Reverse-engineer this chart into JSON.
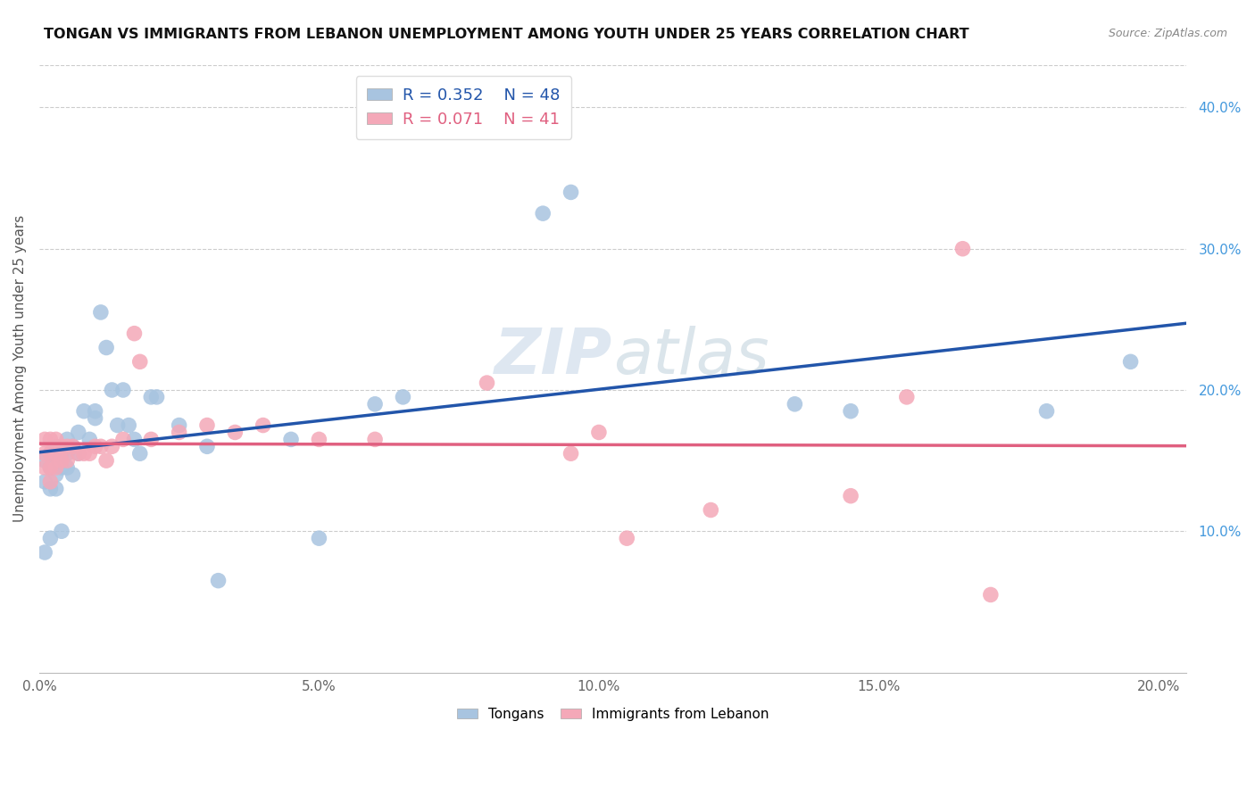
{
  "title": "TONGAN VS IMMIGRANTS FROM LEBANON UNEMPLOYMENT AMONG YOUTH UNDER 25 YEARS CORRELATION CHART",
  "source": "Source: ZipAtlas.com",
  "ylabel": "Unemployment Among Youth under 25 years",
  "xlabel_ticks": [
    "0.0%",
    "5.0%",
    "10.0%",
    "15.0%",
    "20.0%"
  ],
  "xlabel_vals": [
    0.0,
    0.05,
    0.1,
    0.15,
    0.2
  ],
  "ylabel_right_ticks": [
    "10.0%",
    "20.0%",
    "30.0%",
    "40.0%"
  ],
  "ylabel_right_vals": [
    0.1,
    0.2,
    0.3,
    0.4
  ],
  "grid_lines": [
    0.1,
    0.2,
    0.3,
    0.4
  ],
  "xlim": [
    0.0,
    0.205
  ],
  "ylim": [
    0.0,
    0.43
  ],
  "blue_R": "R = 0.352",
  "blue_N": "N = 48",
  "pink_R": "R = 0.071",
  "pink_N": "N = 41",
  "blue_scatter_color": "#a8c4e0",
  "pink_scatter_color": "#f4a8b8",
  "blue_line_color": "#2255aa",
  "pink_line_color": "#e06080",
  "legend_label_blue": "Tongans",
  "legend_label_pink": "Immigrants from Lebanon",
  "watermark_part1": "ZIP",
  "watermark_part2": "atlas",
  "tongan_x": [
    0.001,
    0.001,
    0.001,
    0.002,
    0.002,
    0.002,
    0.002,
    0.003,
    0.003,
    0.003,
    0.003,
    0.004,
    0.004,
    0.004,
    0.005,
    0.005,
    0.005,
    0.006,
    0.006,
    0.007,
    0.007,
    0.008,
    0.009,
    0.01,
    0.01,
    0.011,
    0.012,
    0.013,
    0.014,
    0.015,
    0.016,
    0.017,
    0.018,
    0.02,
    0.021,
    0.025,
    0.03,
    0.032,
    0.045,
    0.05,
    0.06,
    0.065,
    0.09,
    0.095,
    0.135,
    0.145,
    0.18,
    0.195
  ],
  "tongan_y": [
    0.15,
    0.135,
    0.085,
    0.155,
    0.145,
    0.13,
    0.095,
    0.16,
    0.15,
    0.14,
    0.13,
    0.155,
    0.145,
    0.1,
    0.165,
    0.155,
    0.145,
    0.16,
    0.14,
    0.17,
    0.155,
    0.185,
    0.165,
    0.18,
    0.185,
    0.255,
    0.23,
    0.2,
    0.175,
    0.2,
    0.175,
    0.165,
    0.155,
    0.195,
    0.195,
    0.175,
    0.16,
    0.065,
    0.165,
    0.095,
    0.19,
    0.195,
    0.325,
    0.34,
    0.19,
    0.185,
    0.185,
    0.22
  ],
  "lebanon_x": [
    0.001,
    0.001,
    0.001,
    0.002,
    0.002,
    0.002,
    0.002,
    0.003,
    0.003,
    0.003,
    0.004,
    0.004,
    0.005,
    0.005,
    0.006,
    0.007,
    0.008,
    0.009,
    0.01,
    0.011,
    0.012,
    0.013,
    0.015,
    0.017,
    0.018,
    0.02,
    0.025,
    0.03,
    0.035,
    0.04,
    0.05,
    0.06,
    0.08,
    0.095,
    0.1,
    0.105,
    0.12,
    0.145,
    0.155,
    0.165,
    0.17
  ],
  "lebanon_y": [
    0.165,
    0.155,
    0.145,
    0.165,
    0.155,
    0.145,
    0.135,
    0.165,
    0.155,
    0.145,
    0.16,
    0.15,
    0.16,
    0.15,
    0.16,
    0.155,
    0.155,
    0.155,
    0.16,
    0.16,
    0.15,
    0.16,
    0.165,
    0.24,
    0.22,
    0.165,
    0.17,
    0.175,
    0.17,
    0.175,
    0.165,
    0.165,
    0.205,
    0.155,
    0.17,
    0.095,
    0.115,
    0.125,
    0.195,
    0.3,
    0.055
  ]
}
